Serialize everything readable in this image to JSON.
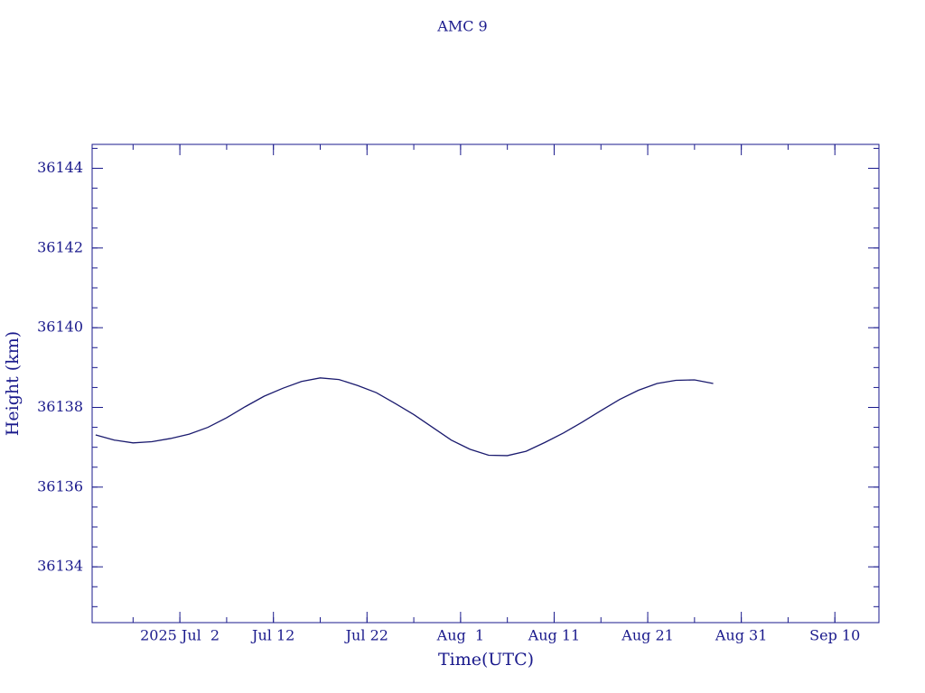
{
  "chart_data": {
    "type": "line",
    "title": "AMC 9",
    "x_label": "Time(UTC)",
    "y_label": "Height (km)",
    "x": [
      "2025-06-23",
      "2025-06-25",
      "2025-06-27",
      "2025-06-29",
      "2025-07-01",
      "2025-07-03",
      "2025-07-05",
      "2025-07-07",
      "2025-07-09",
      "2025-07-11",
      "2025-07-13",
      "2025-07-15",
      "2025-07-17",
      "2025-07-19",
      "2025-07-21",
      "2025-07-23",
      "2025-07-25",
      "2025-07-27",
      "2025-07-29",
      "2025-07-31",
      "2025-08-02",
      "2025-08-04",
      "2025-08-06",
      "2025-08-08",
      "2025-08-10",
      "2025-08-12",
      "2025-08-14",
      "2025-08-16",
      "2025-08-18",
      "2025-08-20",
      "2025-08-22",
      "2025-08-24",
      "2025-08-26",
      "2025-08-28"
    ],
    "series": [
      {
        "name": "Height",
        "color": "#1a1a6e",
        "values": [
          36137.31,
          36137.18,
          36137.11,
          36137.14,
          36137.22,
          36137.33,
          36137.5,
          36137.74,
          36138.02,
          36138.28,
          36138.48,
          36138.65,
          36138.74,
          36138.7,
          36138.55,
          36138.37,
          36138.1,
          36137.82,
          36137.5,
          36137.18,
          36136.95,
          36136.8,
          36136.79,
          36136.9,
          36137.12,
          36137.36,
          36137.63,
          36137.92,
          36138.2,
          36138.43,
          36138.6,
          36138.68,
          36138.69,
          36138.6
        ]
      }
    ],
    "xlim": [
      "2025-06-22T15:00",
      "2025-09-14T17:00"
    ],
    "xticks": [
      {
        "value": "2025-07-02",
        "label": "2025 Jul  2"
      },
      {
        "value": "2025-07-12",
        "label": "Jul 12"
      },
      {
        "value": "2025-07-22",
        "label": "Jul 22"
      },
      {
        "value": "2025-08-01",
        "label": "Aug  1"
      },
      {
        "value": "2025-08-11",
        "label": "Aug 11"
      },
      {
        "value": "2025-08-21",
        "label": "Aug 21"
      },
      {
        "value": "2025-08-31",
        "label": "Aug 31"
      },
      {
        "value": "2025-09-10",
        "label": "Sep 10"
      }
    ],
    "ylim": [
      36132.6,
      36144.6
    ],
    "yticks": [
      36134,
      36136,
      36138,
      36140,
      36142,
      36144
    ]
  }
}
